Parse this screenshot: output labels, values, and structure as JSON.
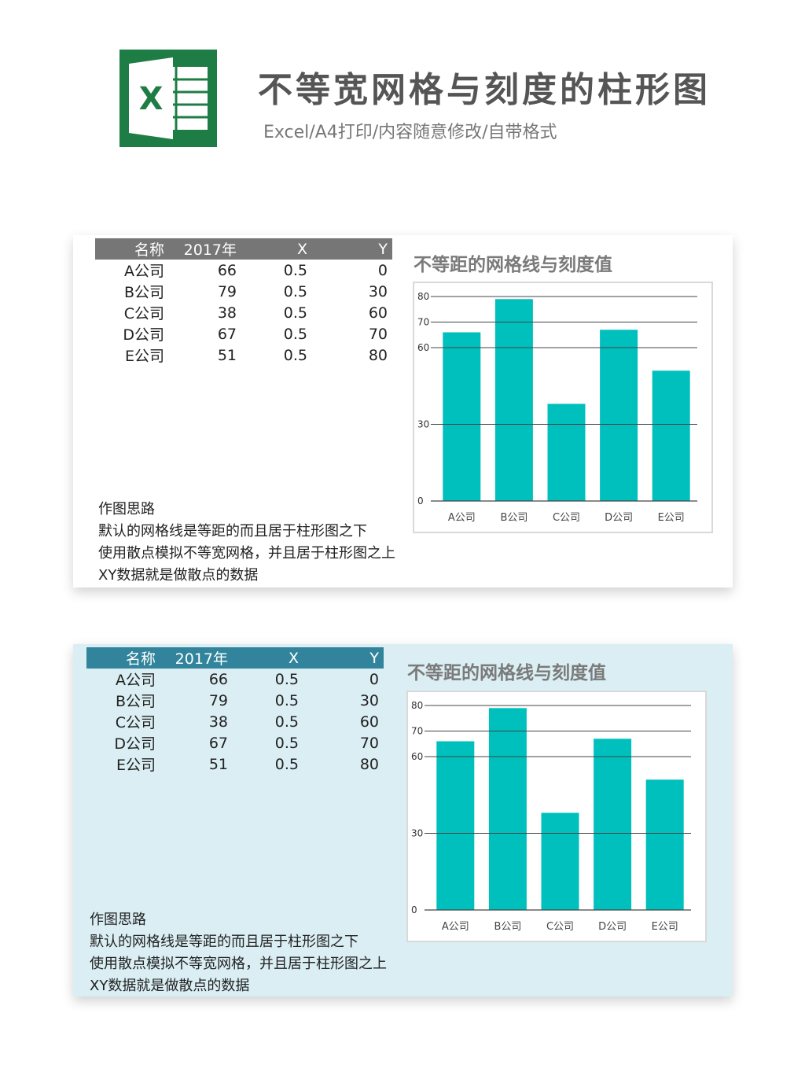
{
  "header": {
    "logo_letter": "X",
    "title": "不等宽网格与刻度的柱形图",
    "subtitle": "Excel/A4打印/内容随意修改/自带格式"
  },
  "colors": {
    "logo_green": "#1e7d45",
    "bar": "#00c0bd",
    "header_gray": "#767676",
    "header_teal": "#31849b",
    "panel2_bg": "#daeef3"
  },
  "table": {
    "headers": [
      "名称",
      "2017年",
      "X",
      "Y"
    ],
    "rows": [
      [
        "A公司",
        "66",
        "0.5",
        "0"
      ],
      [
        "B公司",
        "79",
        "0.5",
        "30"
      ],
      [
        "C公司",
        "38",
        "0.5",
        "60"
      ],
      [
        "D公司",
        "67",
        "0.5",
        "70"
      ],
      [
        "E公司",
        "51",
        "0.5",
        "80"
      ]
    ]
  },
  "notes": [
    "作图思路",
    "默认的网格线是等距的而且居于柱形图之下",
    "使用散点模拟不等宽网格，并且居于柱形图之上",
    "XY数据就是做散点的数据"
  ],
  "chart_data": [
    {
      "type": "bar",
      "title": "不等距的网格线与刻度值",
      "categories": [
        "A公司",
        "B公司",
        "C公司",
        "D公司",
        "E公司"
      ],
      "values": [
        66,
        79,
        38,
        67,
        51
      ],
      "gridlines": [
        0,
        30,
        60,
        70,
        80
      ],
      "ylim": [
        0,
        80
      ],
      "xlabel": "",
      "ylabel": "",
      "legend": "none"
    },
    {
      "type": "bar",
      "title": "不等距的网格线与刻度值",
      "categories": [
        "A公司",
        "B公司",
        "C公司",
        "D公司",
        "E公司"
      ],
      "values": [
        66,
        79,
        38,
        67,
        51
      ],
      "gridlines": [
        0,
        30,
        60,
        70,
        80
      ],
      "ylim": [
        0,
        80
      ],
      "xlabel": "",
      "ylabel": "",
      "legend": "none"
    }
  ]
}
